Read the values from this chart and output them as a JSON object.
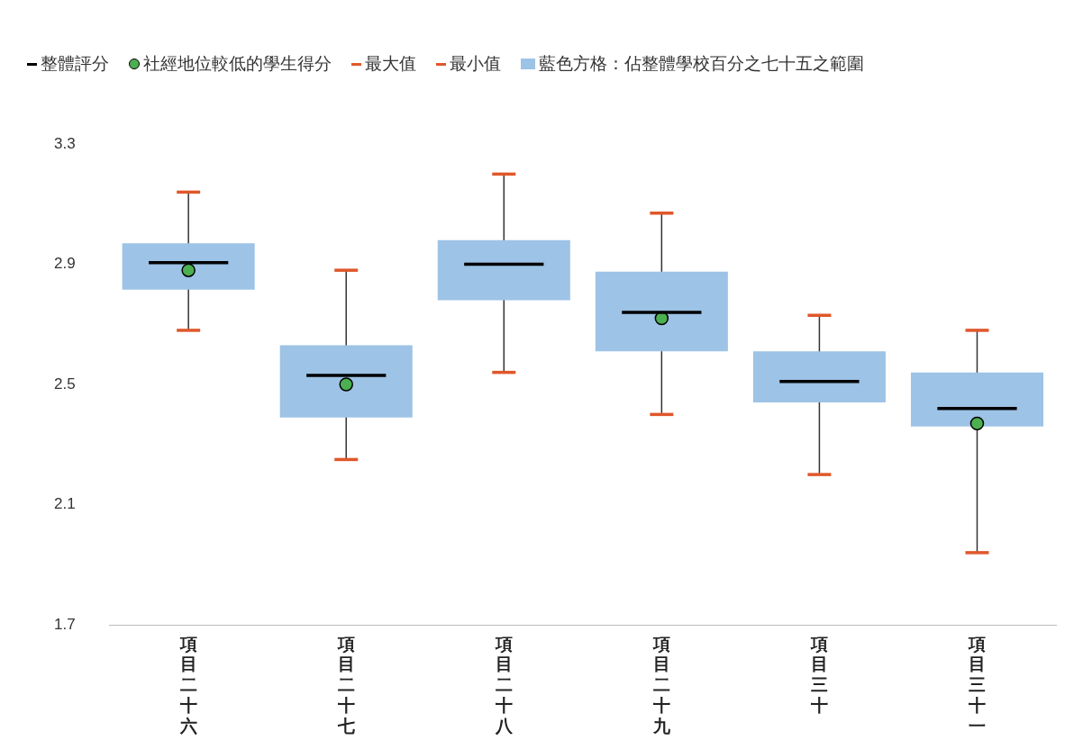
{
  "chart_data": {
    "type": "box",
    "categories": [
      "項目二十六",
      "項目二十七",
      "項目二十八",
      "項目二十九",
      "項目三十",
      "項目三十一"
    ],
    "ylim": [
      1.7,
      3.3
    ],
    "yticks": [
      1.7,
      2.1,
      2.5,
      2.9,
      3.3
    ],
    "grid": false,
    "legend": "top",
    "annotations": [
      "整體評分",
      "最大值",
      "最小值"
    ],
    "series": [
      {
        "type": "scatter",
        "name": "社經地位較低的學生得分",
        "color": "#4caf50",
        "marker": "circle",
        "values": [
          2.88,
          2.5,
          null,
          2.72,
          null,
          2.37
        ]
      },
      {
        "type": "box",
        "name": "藍色方格：佔整體學校百分之七十五之範圍",
        "color": "#9dc3e6",
        "boxes": [
          {
            "low": 2.68,
            "q1": 2.815,
            "median": 2.905,
            "q3": 2.97,
            "high": 3.14
          },
          {
            "low": 2.25,
            "q1": 2.39,
            "median": 2.53,
            "q3": 2.63,
            "high": 2.88
          },
          {
            "low": 2.54,
            "q1": 2.78,
            "median": 2.9,
            "q3": 2.98,
            "high": 3.2
          },
          {
            "low": 2.4,
            "q1": 2.61,
            "median": 2.74,
            "q3": 2.875,
            "high": 3.07
          },
          {
            "low": 2.2,
            "q1": 2.44,
            "median": 2.51,
            "q3": 2.61,
            "high": 2.73
          },
          {
            "low": 1.94,
            "q1": 2.36,
            "median": 2.42,
            "q3": 2.54,
            "high": 2.68
          }
        ]
      }
    ]
  }
}
